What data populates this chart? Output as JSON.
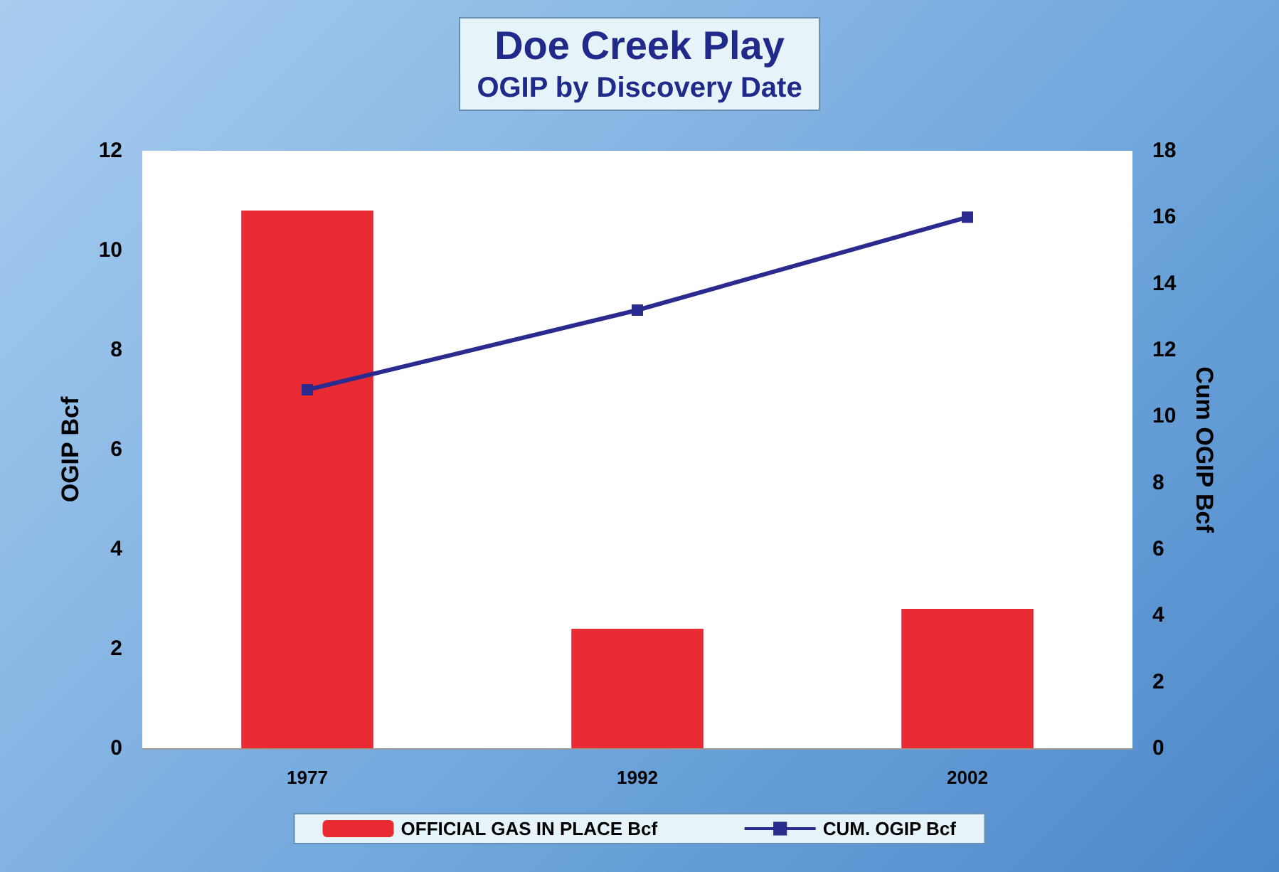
{
  "chart_data": {
    "type": "bar",
    "title": "Doe Creek Play",
    "subtitle": "OGIP by Discovery Date",
    "ylabel": "OGIP Bcf",
    "y2label": "Cum OGIP Bcf",
    "categories": [
      "1977",
      "1992",
      "2002"
    ],
    "series": [
      {
        "name": "OFFICIAL GAS IN PLACE Bcf",
        "color": "#e82a32",
        "values": [
          10.8,
          2.4,
          2.8
        ]
      },
      {
        "name": "CUM. OGIP Bcf",
        "type": "line",
        "axis": "y2",
        "color": "#2b2b8f",
        "marker": "square",
        "values": [
          10.8,
          13.2,
          16.0
        ]
      }
    ],
    "ylim": [
      0,
      12
    ],
    "yticks": [
      0,
      2,
      4,
      6,
      8,
      10,
      12
    ],
    "y2lim": [
      0,
      18
    ],
    "y2ticks": [
      0,
      2,
      4,
      6,
      8,
      10,
      12,
      14,
      16,
      18
    ],
    "grid": false,
    "legend": "bottom"
  }
}
